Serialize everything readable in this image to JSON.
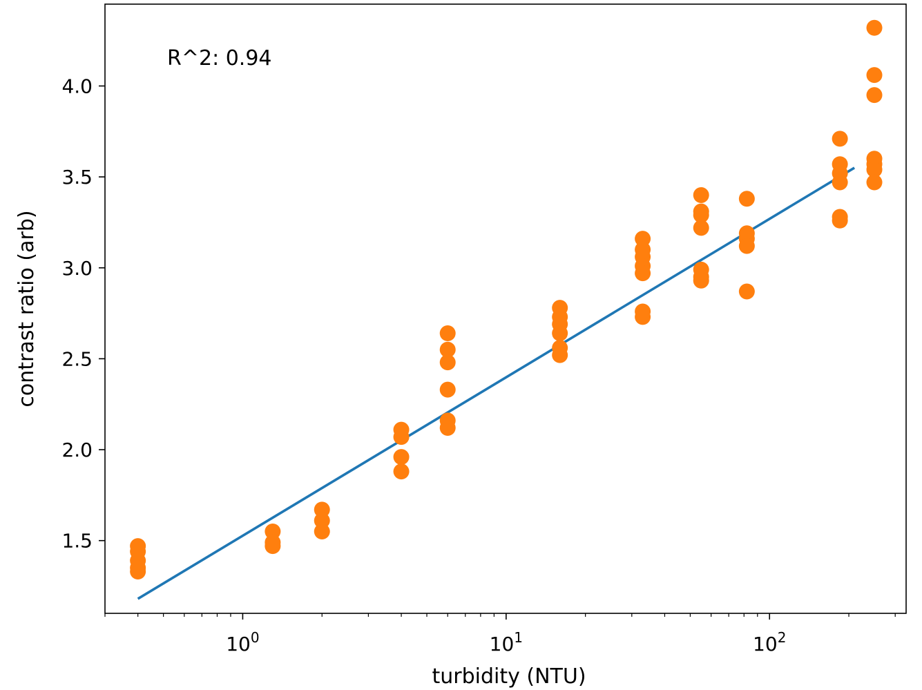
{
  "chart_data": {
    "type": "scatter",
    "annotation": "R^2: 0.94",
    "xlabel": "turbidity (NTU)",
    "ylabel": "contrast ratio (arb)",
    "xscale": "log",
    "xlim": [
      0.3,
      330
    ],
    "ylim": [
      1.1,
      4.45
    ],
    "x_ticks": [
      {
        "value": 1,
        "base": "10",
        "exp": "0"
      },
      {
        "value": 10,
        "base": "10",
        "exp": "1"
      },
      {
        "value": 100,
        "base": "10",
        "exp": "2"
      }
    ],
    "y_ticks": [
      1.5,
      2.0,
      2.5,
      3.0,
      3.5,
      4.0
    ],
    "y_tick_labels": [
      "1.5",
      "2.0",
      "2.5",
      "3.0",
      "3.5",
      "4.0"
    ],
    "grid": false,
    "colors": {
      "points": "#ff7f0e",
      "fit_line": "#1f77b4"
    },
    "series": [
      {
        "type": "scatter",
        "points": [
          [
            0.4,
            1.47
          ],
          [
            0.4,
            1.44
          ],
          [
            0.4,
            1.39
          ],
          [
            0.4,
            1.35
          ],
          [
            0.4,
            1.33
          ],
          [
            1.3,
            1.55
          ],
          [
            1.3,
            1.49
          ],
          [
            1.3,
            1.47
          ],
          [
            2.0,
            1.67
          ],
          [
            2.0,
            1.61
          ],
          [
            2.0,
            1.55
          ],
          [
            4.0,
            2.11
          ],
          [
            4.0,
            2.07
          ],
          [
            4.0,
            1.96
          ],
          [
            4.0,
            1.88
          ],
          [
            6.0,
            2.64
          ],
          [
            6.0,
            2.55
          ],
          [
            6.0,
            2.48
          ],
          [
            6.0,
            2.33
          ],
          [
            6.0,
            2.16
          ],
          [
            6.0,
            2.12
          ],
          [
            16,
            2.78
          ],
          [
            16,
            2.73
          ],
          [
            16,
            2.69
          ],
          [
            16,
            2.64
          ],
          [
            16,
            2.56
          ],
          [
            16,
            2.52
          ],
          [
            33,
            3.16
          ],
          [
            33,
            3.1
          ],
          [
            33,
            3.06
          ],
          [
            33,
            3.01
          ],
          [
            33,
            2.97
          ],
          [
            33,
            2.76
          ],
          [
            33,
            2.73
          ],
          [
            55,
            3.4
          ],
          [
            55,
            3.31
          ],
          [
            55,
            3.29
          ],
          [
            55,
            3.22
          ],
          [
            55,
            2.99
          ],
          [
            55,
            2.95
          ],
          [
            55,
            2.93
          ],
          [
            82,
            3.38
          ],
          [
            82,
            3.19
          ],
          [
            82,
            3.16
          ],
          [
            82,
            3.12
          ],
          [
            82,
            2.87
          ],
          [
            185,
            3.71
          ],
          [
            185,
            3.57
          ],
          [
            185,
            3.52
          ],
          [
            185,
            3.47
          ],
          [
            185,
            3.28
          ],
          [
            185,
            3.26
          ],
          [
            250,
            4.32
          ],
          [
            250,
            4.06
          ],
          [
            250,
            3.95
          ],
          [
            250,
            3.6
          ],
          [
            250,
            3.57
          ],
          [
            250,
            3.54
          ],
          [
            250,
            3.47
          ]
        ]
      },
      {
        "type": "line",
        "x": [
          0.4,
          210
        ],
        "y": [
          1.18,
          3.55
        ]
      }
    ]
  }
}
